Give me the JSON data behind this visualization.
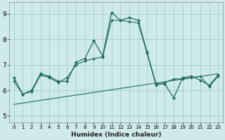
{
  "xlabel": "Humidex (Indice chaleur)",
  "background_color": "#ceeaea",
  "grid_color": "#a8cccc",
  "line_color": "#1e6b5e",
  "xlim": [
    -0.5,
    23.5
  ],
  "ylim": [
    4.75,
    9.45
  ],
  "xticks": [
    0,
    1,
    2,
    3,
    4,
    5,
    6,
    7,
    8,
    9,
    10,
    11,
    12,
    13,
    14,
    15,
    16,
    17,
    18,
    19,
    20,
    21,
    22,
    23
  ],
  "yticks": [
    5,
    6,
    7,
    8,
    9
  ],
  "series1_x": [
    0,
    1,
    2,
    3,
    4,
    5,
    6,
    7,
    8,
    9,
    10,
    11,
    12,
    13,
    14,
    15,
    16,
    17,
    18,
    19,
    20,
    21,
    22,
    23
  ],
  "series1_y": [
    6.5,
    5.85,
    6.0,
    6.65,
    6.55,
    6.35,
    6.35,
    7.1,
    7.25,
    7.95,
    7.35,
    9.05,
    8.75,
    8.85,
    8.75,
    7.5,
    6.25,
    6.25,
    5.7,
    6.5,
    6.55,
    6.4,
    6.2,
    6.6
  ],
  "series2_x": [
    0,
    1,
    2,
    3,
    4,
    5,
    6,
    7,
    8,
    9,
    10,
    11,
    12,
    13,
    14,
    15,
    16,
    17,
    18,
    19,
    20,
    21,
    22,
    23
  ],
  "series2_y": [
    6.35,
    5.85,
    5.95,
    6.6,
    6.5,
    6.3,
    6.5,
    7.0,
    7.15,
    7.25,
    7.3,
    8.75,
    8.75,
    8.7,
    8.65,
    7.45,
    6.2,
    6.3,
    6.45,
    6.45,
    6.5,
    6.55,
    6.15,
    6.55
  ],
  "series3_x": [
    0,
    23
  ],
  "series3_y": [
    5.45,
    6.65
  ]
}
